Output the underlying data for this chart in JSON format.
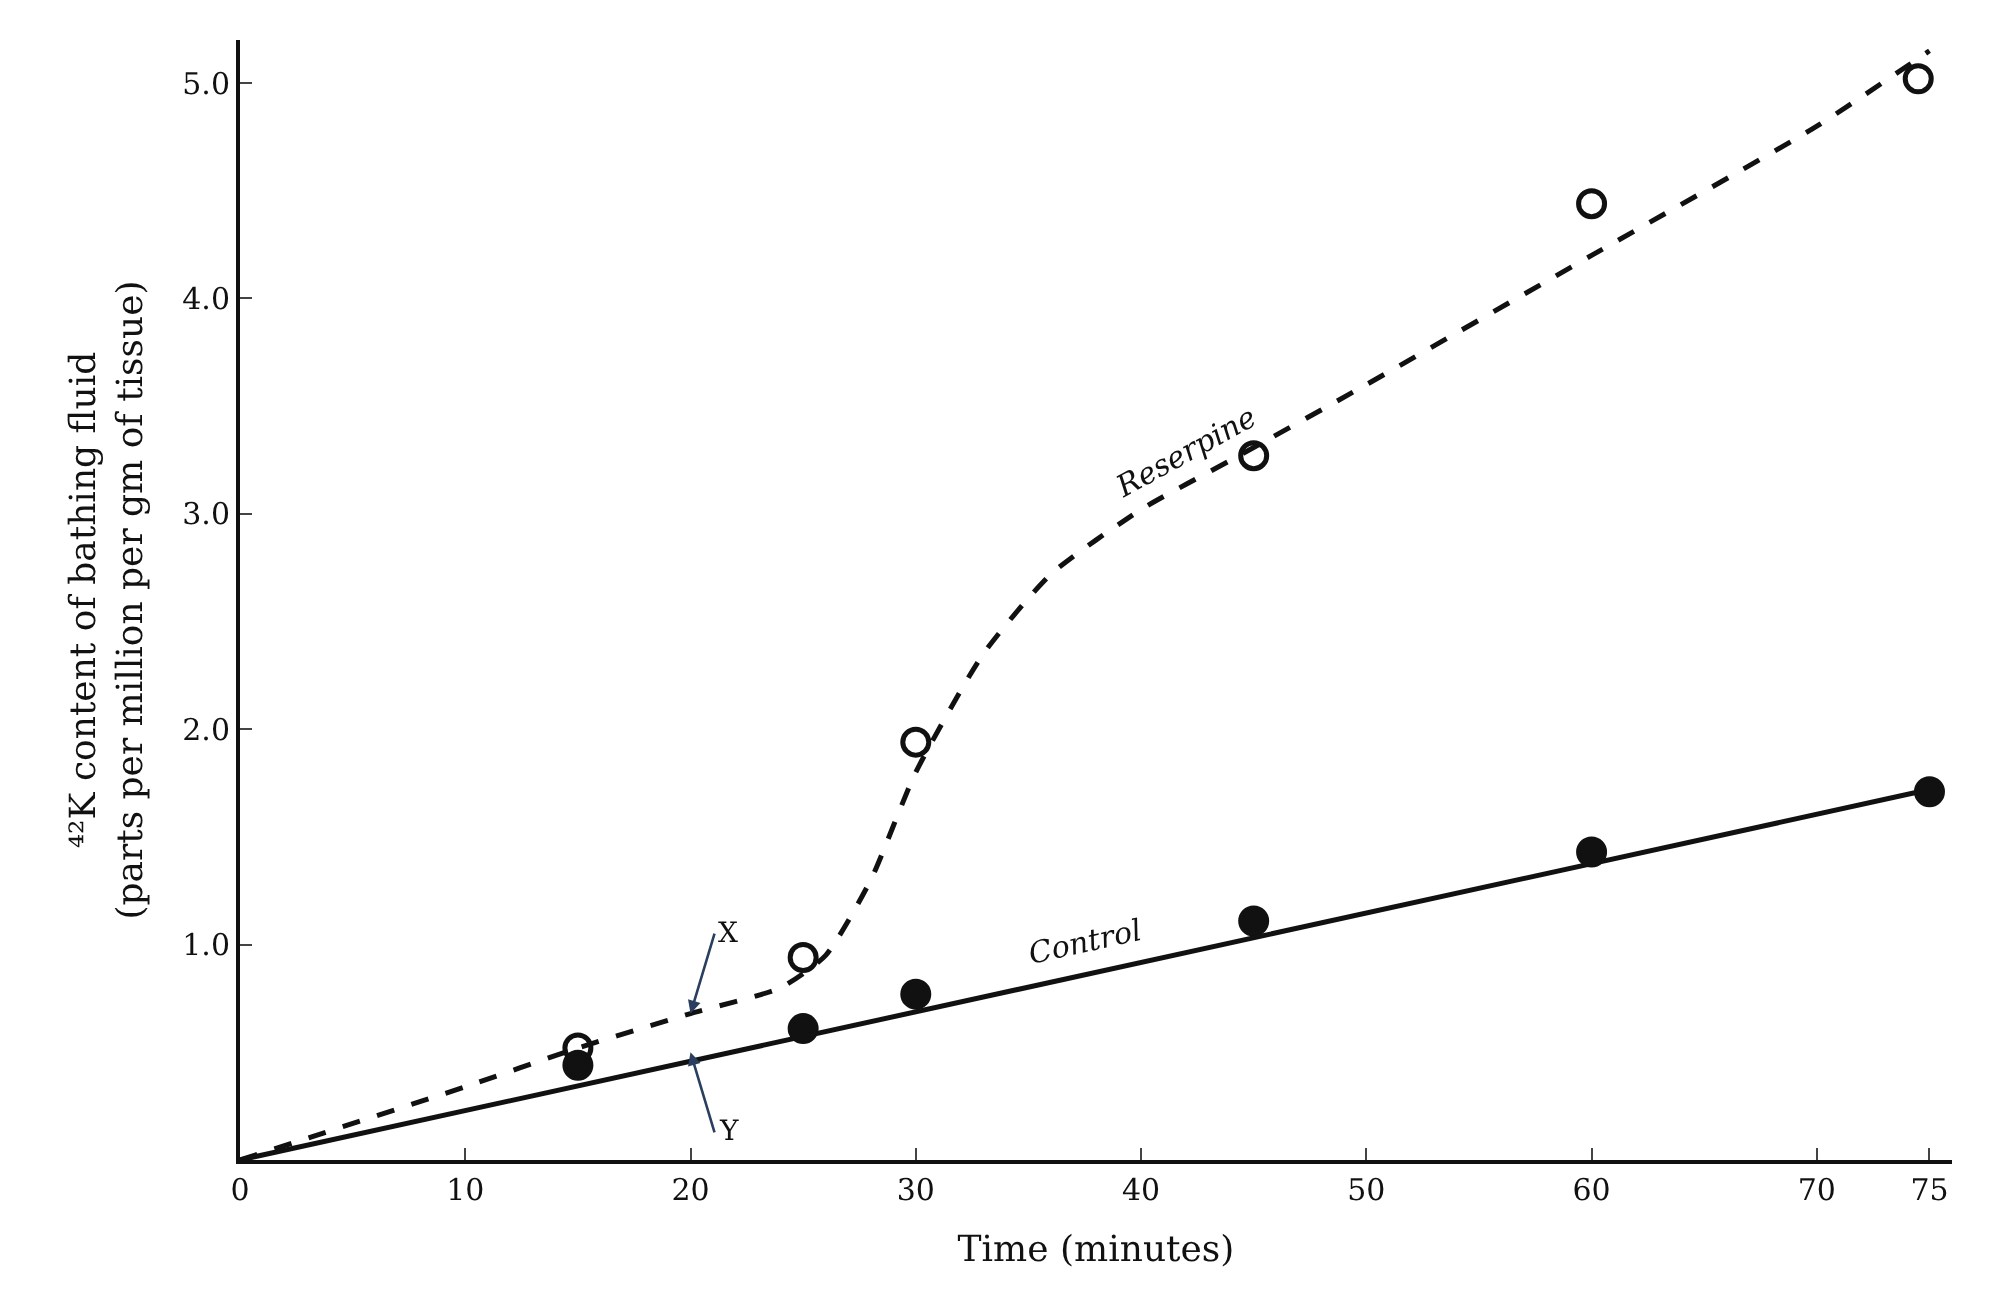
{
  "chart_data": {
    "type": "scatter",
    "xlabel": "Time (minutes)",
    "ylabel": "⁴²K content of bathing fluid\n(parts per million per gm of tissue)",
    "xlim": [
      0,
      76
    ],
    "ylim": [
      0,
      5.2
    ],
    "xticks": [
      0,
      10,
      20,
      30,
      40,
      50,
      60,
      70,
      75
    ],
    "yticks": [
      {
        "value": 1,
        "label": "1.0"
      },
      {
        "value": 2,
        "label": "2.0"
      },
      {
        "value": 3,
        "label": "3.0"
      },
      {
        "value": 4,
        "label": "4.0"
      },
      {
        "value": 5,
        "label": "5.0"
      }
    ],
    "legend": false,
    "series": [
      {
        "marker": "circle-open",
        "color": "#111111",
        "x": [
          15,
          25,
          30,
          45,
          60,
          74.5
        ],
        "values": [
          0.52,
          0.94,
          1.94,
          3.27,
          4.44,
          5.02
        ]
      },
      {
        "marker": "circle",
        "color": "#111111",
        "x": [
          15,
          25,
          30,
          45,
          60,
          75
        ],
        "values": [
          0.44,
          0.61,
          0.77,
          1.11,
          1.43,
          1.71
        ]
      },
      {
        "type": "line",
        "name": "Reserpine",
        "line_style": "dashed",
        "color": "#111111",
        "x": [
          0,
          10,
          15,
          20,
          24,
          26,
          28,
          30,
          33,
          36,
          40,
          44,
          50,
          60,
          70,
          75
        ],
        "values": [
          0,
          0.34,
          0.52,
          0.68,
          0.8,
          0.95,
          1.3,
          1.8,
          2.35,
          2.72,
          3.02,
          3.25,
          3.6,
          4.2,
          4.8,
          5.15
        ]
      },
      {
        "type": "line",
        "name": "Control",
        "line_style": "solid",
        "color": "#111111",
        "x": [
          0,
          75
        ],
        "values": [
          0,
          1.72
        ]
      }
    ],
    "annotations": [
      {
        "text": "X",
        "x": 20,
        "y": 0.68
      },
      {
        "text": "Y",
        "x": 20,
        "y": 0.5
      }
    ]
  }
}
